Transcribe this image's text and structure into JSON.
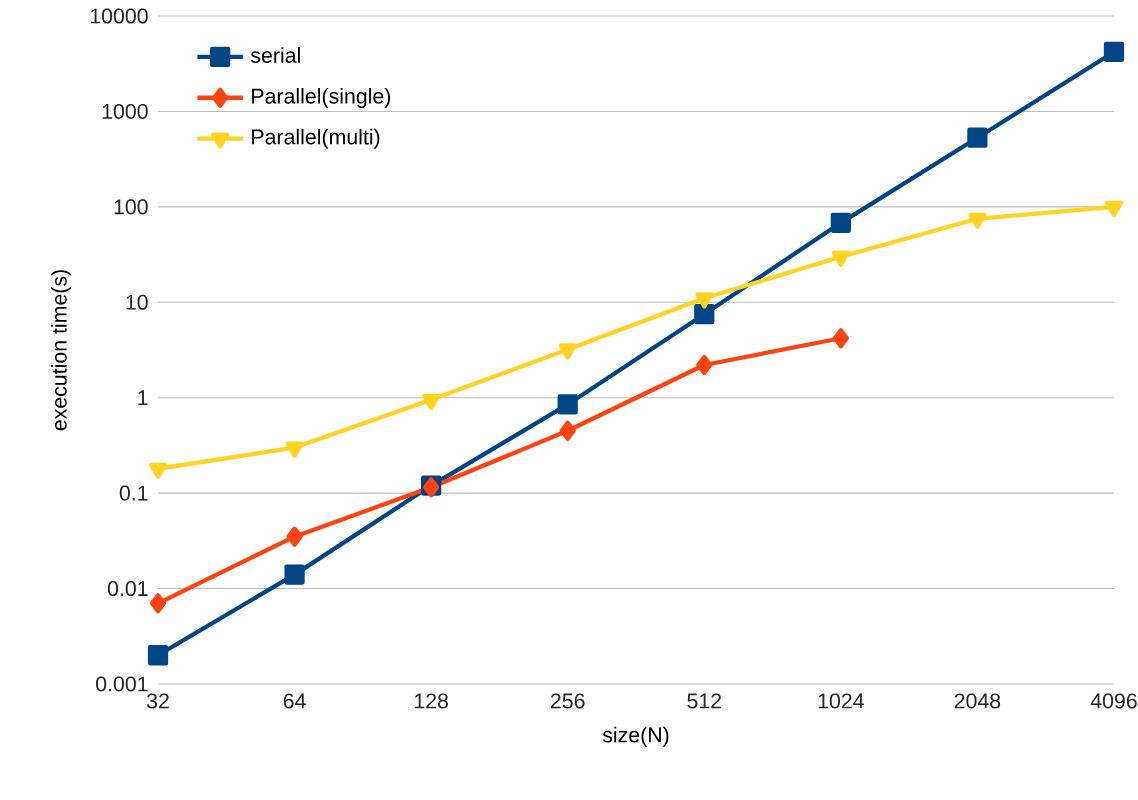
{
  "chart_data": {
    "type": "line",
    "xlabel": "size(N)",
    "ylabel": "execution time(s)",
    "categories": [
      "32",
      "64",
      "128",
      "256",
      "512",
      "1024",
      "2048",
      "4096"
    ],
    "series": [
      {
        "name": "serial",
        "color": "#004586",
        "marker": "square",
        "values": [
          0.002,
          0.014,
          0.12,
          0.85,
          7.5,
          68,
          530,
          4200
        ]
      },
      {
        "name": "Parallel(single)",
        "color": "#ff420e",
        "marker": "diamond",
        "values": [
          0.007,
          0.035,
          0.115,
          0.45,
          2.2,
          4.2,
          null,
          null
        ]
      },
      {
        "name": "Parallel(multi)",
        "color": "#ffd320",
        "marker": "triangle down",
        "values": [
          0.18,
          0.3,
          0.95,
          3.2,
          11,
          30,
          75,
          100
        ]
      }
    ],
    "log": "y",
    "ylim": [
      0.001,
      10000
    ],
    "yticks": [
      0.001,
      0.01,
      0.1,
      1,
      10,
      100,
      1000,
      10000
    ],
    "grid": "y",
    "legend": "top left",
    "line_style": "solid"
  }
}
